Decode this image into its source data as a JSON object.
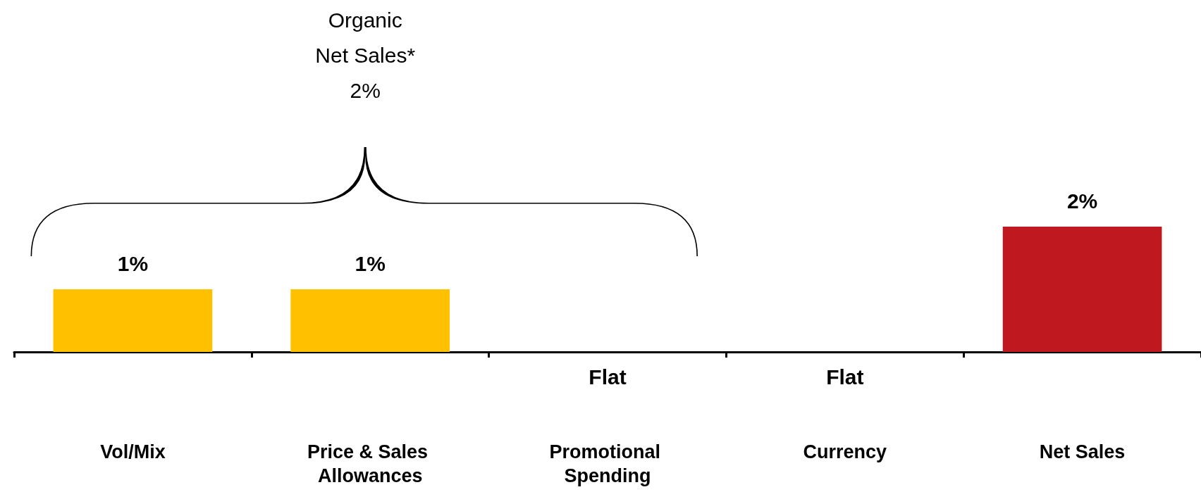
{
  "chart_data": {
    "type": "bar",
    "categories": [
      "Vol/Mix",
      "Price & Sales Allowances",
      "Promotional Spending",
      "Currency",
      "Net Sales"
    ],
    "values": [
      1,
      1,
      0,
      0,
      2
    ],
    "colors": [
      "#ffc000",
      "#ffc000",
      "#ffc000",
      "#ffc000",
      "#c0181f"
    ],
    "value_labels": [
      "1%",
      "1%",
      "Flat",
      "Flat",
      "2%"
    ],
    "annotations": [
      "Organic Net Sales* 2%"
    ],
    "grid": false
  }
}
